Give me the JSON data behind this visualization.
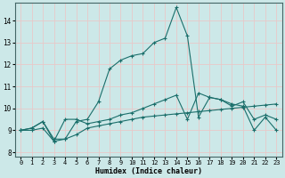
{
  "xlabel": "Humidex (Indice chaleur)",
  "background_color": "#cce8e8",
  "grid_color": "#e8c8c8",
  "line_color": "#1a6e6a",
  "xlim": [
    -0.5,
    23.5
  ],
  "ylim": [
    7.8,
    14.8
  ],
  "xticks": [
    0,
    1,
    2,
    3,
    4,
    5,
    6,
    7,
    8,
    9,
    10,
    11,
    12,
    13,
    14,
    15,
    16,
    17,
    18,
    19,
    20,
    21,
    22,
    23
  ],
  "yticks": [
    8,
    9,
    10,
    11,
    12,
    13,
    14
  ],
  "series_peak_x": [
    0,
    1,
    2,
    3,
    4,
    5,
    6,
    7,
    8,
    9,
    10,
    11,
    12,
    13,
    14,
    15,
    16,
    17,
    18,
    19,
    20,
    21,
    22,
    23
  ],
  "series_peak_y": [
    9.0,
    9.1,
    9.4,
    8.6,
    8.6,
    9.4,
    9.5,
    10.3,
    11.8,
    12.2,
    12.4,
    12.5,
    13.0,
    13.2,
    14.6,
    13.3,
    9.6,
    10.5,
    10.4,
    10.2,
    10.1,
    9.0,
    9.6,
    9.0
  ],
  "series_mid_x": [
    0,
    1,
    2,
    3,
    4,
    5,
    6,
    7,
    8,
    9,
    10,
    11,
    12,
    13,
    14,
    15,
    16,
    17,
    18,
    19,
    20,
    21,
    22,
    23
  ],
  "series_mid_y": [
    9.0,
    9.1,
    9.4,
    8.5,
    9.5,
    9.5,
    9.3,
    9.4,
    9.5,
    9.7,
    9.8,
    10.0,
    10.2,
    10.4,
    10.6,
    9.5,
    10.7,
    10.5,
    10.4,
    10.1,
    10.3,
    9.5,
    9.7,
    9.5
  ],
  "series_base_x": [
    0,
    1,
    2,
    3,
    4,
    5,
    6,
    7,
    8,
    9,
    10,
    11,
    12,
    13,
    14,
    15,
    16,
    17,
    18,
    19,
    20,
    21,
    22,
    23
  ],
  "series_base_y": [
    9.0,
    9.0,
    9.1,
    8.5,
    8.6,
    8.8,
    9.1,
    9.2,
    9.3,
    9.4,
    9.5,
    9.6,
    9.65,
    9.7,
    9.75,
    9.8,
    9.85,
    9.9,
    9.95,
    10.0,
    10.05,
    10.1,
    10.15,
    10.2
  ]
}
